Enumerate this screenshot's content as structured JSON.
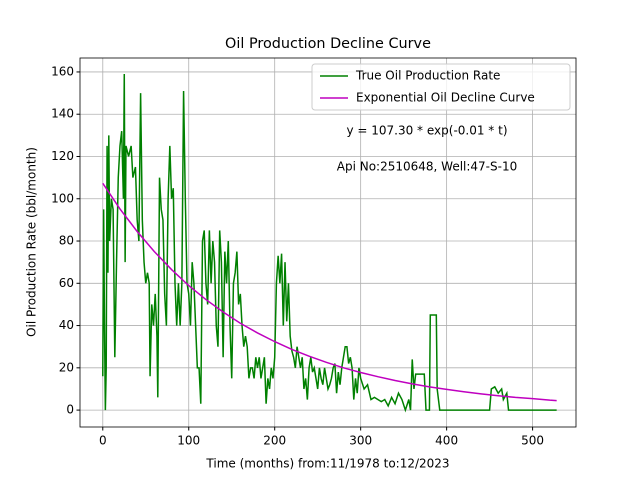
{
  "chart_data": {
    "type": "line",
    "title": "Oil Production Decline Curve",
    "x_label": "Time (months) from:11/1978 to:12/2023",
    "y_label": "Oil Production Rate (bbl/month)",
    "annotations": [
      "y = 107.30 * exp(-0.01 * t)",
      "Api No:2510648, Well:47-S-10"
    ],
    "xlim": [
      -26.5,
      550.5
    ],
    "ylim": [
      -8,
      166.6
    ],
    "xticks": [
      0,
      100,
      200,
      300,
      400,
      500
    ],
    "yticks": [
      0,
      20,
      40,
      60,
      80,
      100,
      120,
      140,
      160
    ],
    "grid": true,
    "legend": "upper right",
    "series": [
      {
        "name": "True Oil Production Rate",
        "color": "#008000",
        "x": [
          0,
          1,
          2,
          3,
          4,
          5,
          6,
          7,
          8,
          10,
          12,
          14,
          16,
          18,
          20,
          22,
          24,
          25,
          26,
          27,
          30,
          33,
          35,
          38,
          40,
          42,
          44,
          46,
          48,
          50,
          52,
          54,
          55,
          57,
          59,
          61,
          63,
          64,
          66,
          68,
          70,
          72,
          74,
          76,
          78,
          80,
          82,
          84,
          86,
          88,
          90,
          92,
          94,
          96,
          98,
          100,
          102,
          104,
          106,
          108,
          110,
          112,
          114,
          116,
          118,
          120,
          122,
          124,
          126,
          128,
          130,
          132,
          134,
          136,
          138,
          140,
          142,
          144,
          146,
          148,
          150,
          152,
          154,
          156,
          158,
          160,
          162,
          164,
          166,
          168,
          170,
          172,
          174,
          176,
          178,
          180,
          182,
          184,
          186,
          188,
          190,
          192,
          194,
          196,
          198,
          200,
          202,
          204,
          206,
          208,
          210,
          212,
          214,
          216,
          218,
          220,
          222,
          224,
          226,
          228,
          230,
          232,
          234,
          236,
          238,
          240,
          242,
          244,
          246,
          248,
          250,
          252,
          254,
          256,
          258,
          260,
          262,
          264,
          266,
          268,
          270,
          272,
          274,
          276,
          278,
          280,
          282,
          284,
          286,
          288,
          290,
          292,
          294,
          296,
          298,
          300,
          304,
          308,
          312,
          316,
          320,
          324,
          328,
          332,
          336,
          340,
          344,
          348,
          352,
          356,
          358,
          360,
          362,
          364,
          370,
          374,
          376,
          380,
          381,
          388,
          389,
          392,
          400,
          420,
          440,
          450,
          452,
          456,
          460,
          464,
          466,
          470,
          472,
          480,
          500,
          528
        ],
        "values": [
          16,
          95,
          40,
          0,
          20,
          125,
          65,
          130,
          80,
          100,
          95,
          25,
          70,
          110,
          125,
          132,
          100,
          159,
          70,
          125,
          120,
          125,
          110,
          115,
          90,
          80,
          150,
          90,
          70,
          60,
          65,
          60,
          16,
          50,
          40,
          55,
          35,
          6,
          110,
          95,
          90,
          55,
          40,
          100,
          125,
          100,
          105,
          60,
          40,
          60,
          40,
          60,
          151,
          100,
          60,
          55,
          40,
          70,
          60,
          40,
          20,
          20,
          3,
          80,
          85,
          60,
          50,
          85,
          60,
          80,
          70,
          40,
          30,
          85,
          70,
          25,
          75,
          60,
          80,
          40,
          15,
          60,
          65,
          75,
          50,
          55,
          40,
          30,
          35,
          30,
          15,
          20,
          20,
          15,
          25,
          20,
          25,
          15,
          20,
          25,
          3,
          15,
          10,
          20,
          15,
          25,
          60,
          73,
          60,
          74,
          40,
          70,
          42,
          60,
          35,
          28,
          25,
          20,
          30,
          25,
          20,
          25,
          10,
          15,
          5,
          20,
          25,
          18,
          20,
          15,
          10,
          20,
          15,
          12,
          20,
          15,
          10,
          12,
          15,
          20,
          22,
          8,
          18,
          12,
          20,
          25,
          30,
          30,
          22,
          25,
          20,
          5,
          15,
          8,
          20,
          15,
          10,
          12,
          5,
          6,
          5,
          4,
          5,
          2,
          6,
          3,
          8,
          5,
          0,
          5,
          0,
          24,
          10,
          17,
          17,
          17,
          0,
          0,
          45,
          45,
          10,
          0,
          0,
          0,
          0,
          0,
          10,
          11,
          8,
          10,
          5,
          8,
          0,
          0,
          0,
          0
        ]
      },
      {
        "name": "Exponential Oil Decline Curve",
        "color": "#bf00bf",
        "x": [
          0,
          20,
          40,
          60,
          80,
          100,
          120,
          140,
          160,
          180,
          200,
          220,
          240,
          260,
          280,
          300,
          320,
          340,
          360,
          380,
          400,
          420,
          440,
          460,
          480,
          500,
          520,
          528
        ],
        "values": [
          107.3,
          95.2,
          84.5,
          75.0,
          66.5,
          58.9,
          52.3,
          46.4,
          41.1,
          36.5,
          32.4,
          28.7,
          25.5,
          22.6,
          20.0,
          17.8,
          15.8,
          14.0,
          12.4,
          11.0,
          9.8,
          8.7,
          7.7,
          6.8,
          6.0,
          5.4,
          4.7,
          4.5
        ]
      }
    ]
  }
}
